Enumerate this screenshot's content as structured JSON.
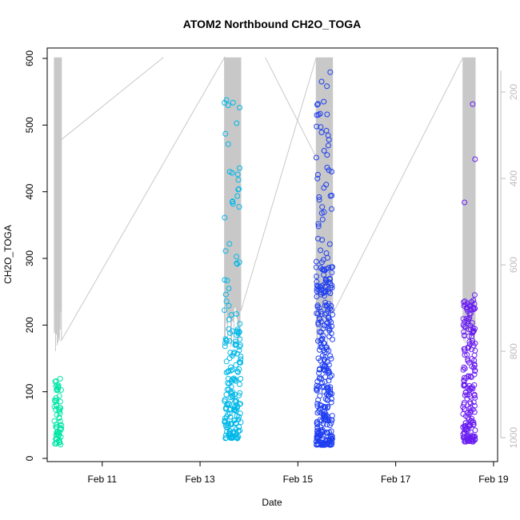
{
  "chart_data": {
    "type": "scatter",
    "title": "ATOM2 Northbound CH2O_TOGA",
    "xlabel": "Date",
    "ylabel": "CH2O_TOGA",
    "x_axis": {
      "type": "date",
      "range": [
        "2017-02-09T21:00",
        "2017-02-19T02:00"
      ],
      "ticks": [
        {
          "date": "2017-02-11",
          "label": "Feb 11"
        },
        {
          "date": "2017-02-13",
          "label": "Feb 13"
        },
        {
          "date": "2017-02-15",
          "label": "Feb 15"
        },
        {
          "date": "2017-02-17",
          "label": "Feb 17"
        },
        {
          "date": "2017-02-19",
          "label": "Feb 19"
        }
      ]
    },
    "y_axis": {
      "range": [
        0,
        600
      ],
      "ticks": [
        0,
        100,
        200,
        300,
        400,
        500,
        600
      ]
    },
    "y2_axis": {
      "description_free": true,
      "range_top": 150,
      "range_bottom": 1020,
      "reversed": true,
      "ticks": [
        200,
        400,
        600,
        800,
        1000
      ],
      "color": "#bdbdbd"
    },
    "grid": false,
    "legend": "none",
    "point_style": "open-circle",
    "flights": [
      {
        "start": "2017-02-10T00:30",
        "end": "2017-02-10T04:00",
        "color": "#00e6a6"
      },
      {
        "start": "2017-02-13T12:00",
        "end": "2017-02-13T20:00",
        "color": "#00b8e8"
      },
      {
        "start": "2017-02-15T09:00",
        "end": "2017-02-15T17:00",
        "color": "#1f3ef0"
      },
      {
        "start": "2017-02-18T09:00",
        "end": "2017-02-18T15:00",
        "color": "#6a1ef2"
      }
    ],
    "pressure_color": "#c8c8c8"
  }
}
